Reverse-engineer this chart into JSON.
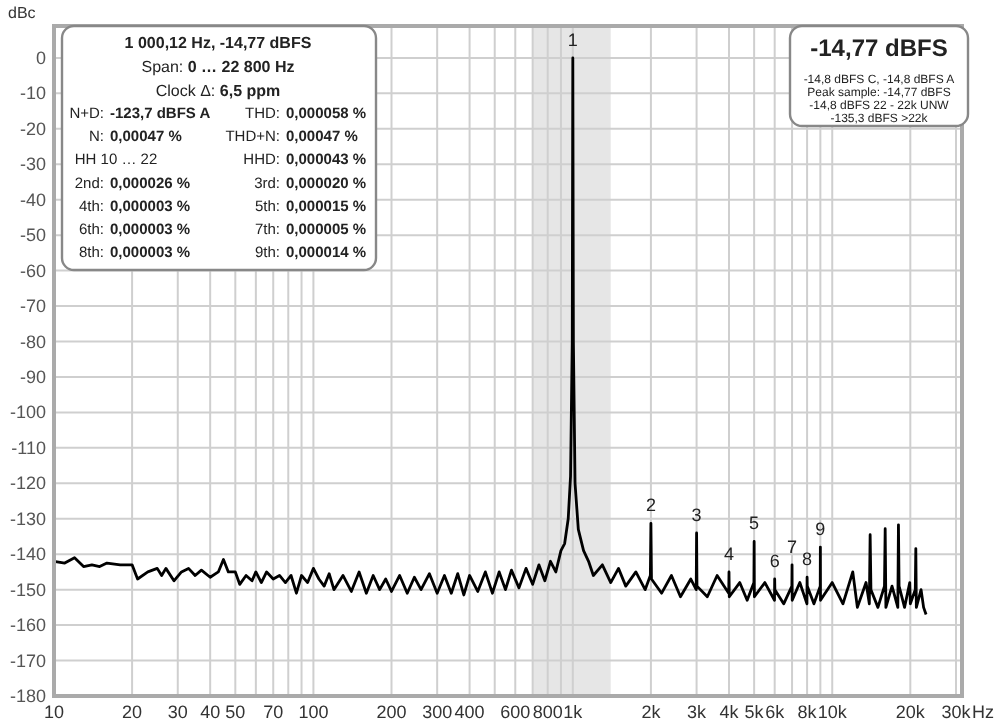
{
  "chart_data": {
    "type": "line",
    "ylabel": "dBc",
    "log": "x",
    "grid": true,
    "xlim": [
      10,
      30000
    ],
    "ylim": [
      -180,
      9
    ],
    "xticks": [
      {
        "value": 10,
        "label": "10"
      },
      {
        "value": 20,
        "label": "20"
      },
      {
        "value": 30,
        "label": "30"
      },
      {
        "value": 40,
        "label": "40"
      },
      {
        "value": 50,
        "label": "50"
      },
      {
        "value": 60,
        "label": null
      },
      {
        "value": 70,
        "label": "70"
      },
      {
        "value": 80,
        "label": null
      },
      {
        "value": 90,
        "label": null
      },
      {
        "value": 100,
        "label": "100"
      },
      {
        "value": 200,
        "label": "200"
      },
      {
        "value": 300,
        "label": "300"
      },
      {
        "value": 400,
        "label": "400"
      },
      {
        "value": 500,
        "label": null
      },
      {
        "value": 600,
        "label": "600"
      },
      {
        "value": 700,
        "label": null
      },
      {
        "value": 800,
        "label": "800"
      },
      {
        "value": 900,
        "label": null
      },
      {
        "value": 1000,
        "label": "1k"
      },
      {
        "value": 2000,
        "label": "2k"
      },
      {
        "value": 3000,
        "label": "3k"
      },
      {
        "value": 4000,
        "label": "4k"
      },
      {
        "value": 5000,
        "label": "5k"
      },
      {
        "value": 6000,
        "label": "6k"
      },
      {
        "value": 7000,
        "label": null
      },
      {
        "value": 8000,
        "label": "8k"
      },
      {
        "value": 9000,
        "label": null
      },
      {
        "value": 10000,
        "label": "10k"
      },
      {
        "value": 20000,
        "label": "20k"
      },
      {
        "value": 30000,
        "label": "30k"
      }
    ],
    "xlabel": "Hz",
    "yticks": [
      0,
      -10,
      -20,
      -30,
      -40,
      -50,
      -60,
      -70,
      -80,
      -90,
      -100,
      -110,
      -120,
      -130,
      -140,
      -150,
      -160,
      -170,
      -180
    ],
    "bands": [
      {
        "axis": "x",
        "from": 700,
        "to": 1400,
        "color": "#e6e6e6"
      }
    ],
    "series": [
      {
        "color": "#000000",
        "x": [
          10,
          11,
          12,
          13,
          14,
          15,
          16,
          18,
          20,
          21,
          23,
          25,
          26,
          27,
          29,
          31,
          33,
          35,
          37,
          40,
          43,
          45,
          47,
          50,
          52,
          55,
          58,
          60,
          63,
          66,
          70,
          74,
          78,
          82,
          86,
          90,
          95,
          100,
          105,
          110,
          115,
          120,
          130,
          140,
          150,
          160,
          170,
          180,
          190,
          200,
          215,
          230,
          245,
          260,
          280,
          300,
          320,
          340,
          360,
          380,
          400,
          430,
          460,
          490,
          520,
          550,
          580,
          620,
          660,
          700,
          740,
          780,
          820,
          860,
          900,
          930,
          960,
          980,
          995,
          1000,
          1005,
          1020,
          1050,
          1100,
          1150,
          1200,
          1300,
          1400,
          1500,
          1600,
          1750,
          1900,
          1990,
          2000,
          2010,
          2200,
          2400,
          2600,
          2850,
          2990,
          3000,
          3010,
          3300,
          3600,
          3990,
          4000,
          4010,
          4400,
          4700,
          4990,
          5000,
          5010,
          5500,
          5990,
          6000,
          6010,
          6500,
          6990,
          7000,
          7010,
          7500,
          7990,
          8000,
          8010,
          8500,
          8990,
          9000,
          9010,
          10000,
          11000,
          12000,
          12500,
          13500,
          13900,
          14000,
          14100,
          15000,
          15900,
          16000,
          16100,
          17000,
          17900,
          18000,
          18100,
          19000,
          19900,
          20000,
          20900,
          21000,
          21100,
          22000,
          22500,
          23000
        ],
        "values": [
          -142,
          -142.5,
          -141,
          -143.5,
          -143,
          -143.5,
          -142.5,
          -143,
          -143,
          -147,
          -145,
          -144,
          -146,
          -144,
          -147.5,
          -145,
          -144,
          -146,
          -144.5,
          -146.5,
          -145,
          -141.5,
          -145,
          -145,
          -148.5,
          -146,
          -147.5,
          -145,
          -148,
          -145,
          -147,
          -146,
          -148,
          -146,
          -151,
          -146,
          -148,
          -144,
          -147,
          -149,
          -145.5,
          -150,
          -146,
          -150.5,
          -145,
          -151,
          -146,
          -150,
          -147,
          -150.5,
          -146,
          -151,
          -146.5,
          -150,
          -145.5,
          -151,
          -146,
          -151,
          -145.5,
          -151.5,
          -146,
          -150.5,
          -145,
          -151,
          -145,
          -150,
          -144.5,
          -149.5,
          -144,
          -148.5,
          -143,
          -147.5,
          -142,
          -145,
          -139,
          -137,
          -130,
          -118,
          -80,
          0,
          -80,
          -120,
          -133,
          -139,
          -142,
          -146,
          -143,
          -148,
          -144,
          -149,
          -145,
          -150,
          -146,
          -131.3,
          -147,
          -151,
          -146,
          -152,
          -147,
          -150,
          -134,
          -149,
          -152,
          -146,
          -151,
          -145,
          -152,
          -148,
          -153,
          -148,
          -136.4,
          -152,
          -148,
          -153,
          -147,
          -150,
          -154,
          -149,
          -143,
          -153,
          -148,
          -154,
          -146.5,
          -149,
          -154,
          -149,
          -138,
          -153,
          -148,
          -154,
          -145,
          -155,
          -148,
          -154,
          -134.5,
          -150,
          -155,
          -149,
          -132.8,
          -155,
          -149,
          -155,
          -131.7,
          -149,
          -155,
          -148,
          -154,
          -150,
          -138.4,
          -155,
          -150,
          -155,
          -157
        ]
      }
    ],
    "annotations": [
      "1 000,12 Hz, -14,77 dBFS",
      "Span: 0 … 22 800 Hz",
      "Clock Δ: 6,5 ppm",
      "N+D: -123,7 dBFS A",
      "THD: 0,000058 %",
      "N: 0,00047 %",
      "THD+N: 0,00047 %",
      "HH 10 … 22",
      "HHD: 0,000043 %",
      "2nd: 0,000026 %",
      "3rd: 0,000020 %",
      "4th: 0,000003 %",
      "5th: 0,000015 %",
      "6th: 0,000003 %",
      "7th: 0,000005 %",
      "8th: 0,000003 %",
      "9th: 0,000014 %",
      "-14,77 dBFS",
      "-14,8 dBFS C, -14,8 dBFS A",
      "Peak sample: -14,77 dBFS",
      "-14,8 dBFS 22 - 22k UNW",
      "-135,3 dBFS >22k",
      {
        "text": "1",
        "x": 1000,
        "y": 0
      },
      {
        "text": "2",
        "x": 2000,
        "y": -131.3
      },
      {
        "text": "3",
        "x": 3000,
        "y": -134
      },
      {
        "text": "4",
        "x": 4000,
        "y": -145
      },
      {
        "text": "5",
        "x": 5000,
        "y": -136.4
      },
      {
        "text": "6",
        "x": 6000,
        "y": -147
      },
      {
        "text": "7",
        "x": 7000,
        "y": -143
      },
      {
        "text": "8",
        "x": 8000,
        "y": -146.5
      },
      {
        "text": "9",
        "x": 9000,
        "y": -138
      }
    ]
  }
}
